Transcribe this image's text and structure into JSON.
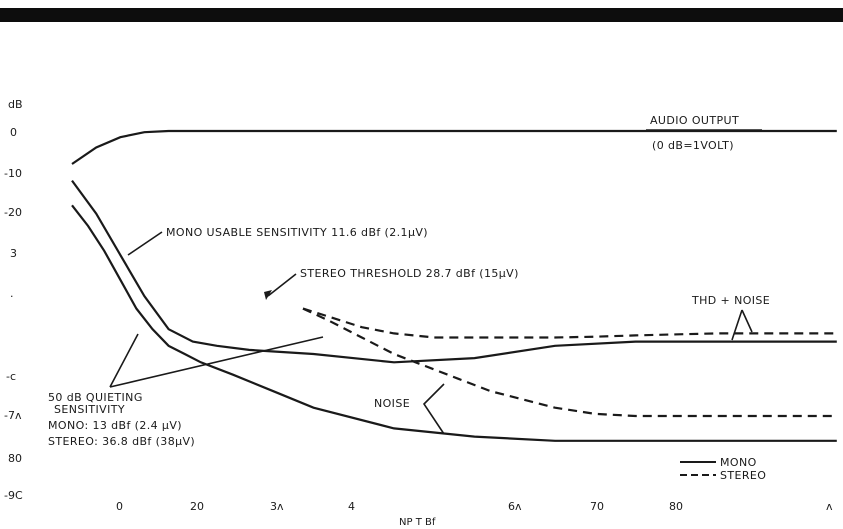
{
  "chart_data": {
    "type": "line",
    "xlabel": "NP T Bf",
    "x_ticks": [
      "0",
      "20",
      "3ʌ",
      "4",
      "6ʌ",
      "70",
      "80",
      "ʌ"
    ],
    "y_ticks": [
      "dB",
      "0",
      "-10",
      "-20",
      "3",
      "·",
      "-ᴄ",
      "-7ʌ",
      "80",
      "-9C"
    ],
    "series": [
      {
        "key": "audio",
        "style": "solid",
        "x": [
          0,
          3,
          6,
          9,
          12,
          15,
          20,
          30,
          40,
          60,
          80,
          90,
          95
        ],
        "y": [
          -8,
          -4,
          -1.5,
          -0.3,
          0,
          0,
          0,
          0,
          0,
          0,
          0,
          0,
          0
        ]
      },
      {
        "key": "thd_mono",
        "style": "solid",
        "x": [
          0,
          3,
          6,
          9,
          12,
          15,
          18,
          22,
          30,
          40,
          50,
          60,
          70,
          80,
          95
        ],
        "y": [
          -12,
          -20,
          -30,
          -40,
          -48,
          -51,
          -52,
          -53,
          -54,
          -56,
          -55,
          -52,
          -51,
          -51,
          -51
        ]
      },
      {
        "key": "noise_mono",
        "style": "solid",
        "x": [
          0,
          2,
          4,
          6,
          8,
          10,
          12,
          14,
          16,
          20,
          25,
          30,
          40,
          50,
          60,
          80,
          95
        ],
        "y": [
          -18,
          -23,
          -29,
          -36,
          -43,
          -48,
          -52,
          -54,
          -56,
          -59,
          -63,
          -67,
          -72,
          -74,
          -75,
          -75,
          -75
        ]
      },
      {
        "key": "noise_stereo",
        "style": "dashed",
        "x": [
          28.7,
          32,
          36,
          40,
          44,
          48,
          52,
          56,
          60,
          65,
          70,
          80,
          95
        ],
        "y": [
          -43,
          -46,
          -50,
          -54,
          -57,
          -60,
          -63,
          -65,
          -67,
          -68.5,
          -69,
          -69,
          -69
        ]
      },
      {
        "key": "thd_stereo",
        "style": "dashed",
        "x": [
          28.7,
          32,
          36,
          40,
          45,
          50,
          55,
          60,
          65,
          70,
          80,
          95
        ],
        "y": [
          -43,
          -45,
          -47.5,
          -49,
          -50,
          -50,
          -50,
          -50,
          -49.8,
          -49.5,
          -49,
          -49
        ]
      }
    ],
    "annotations": {
      "audio_output": "AUDIO OUTPUT",
      "audio_ref": "(0 dB=1VOLT)",
      "mono_usable": "MONO USABLE SENSITIVITY 11.6 dBf (2.1µV)",
      "stereo_threshold": "STEREO THRESHOLD 28.7 dBf (15µV)",
      "thd_noise": "THD + NOISE",
      "noise": "NOISE",
      "quieting_1": "50 dB QUIETING",
      "quieting_2": "SENSITIVITY",
      "quieting_3": "MONO: 13 dBf (2.4 µV)",
      "quieting_4": "STEREO: 36.8 dBf (38µV)"
    },
    "legend": {
      "position": "bottom-right",
      "mono": "MONO",
      "stereo": "STEREO"
    }
  }
}
